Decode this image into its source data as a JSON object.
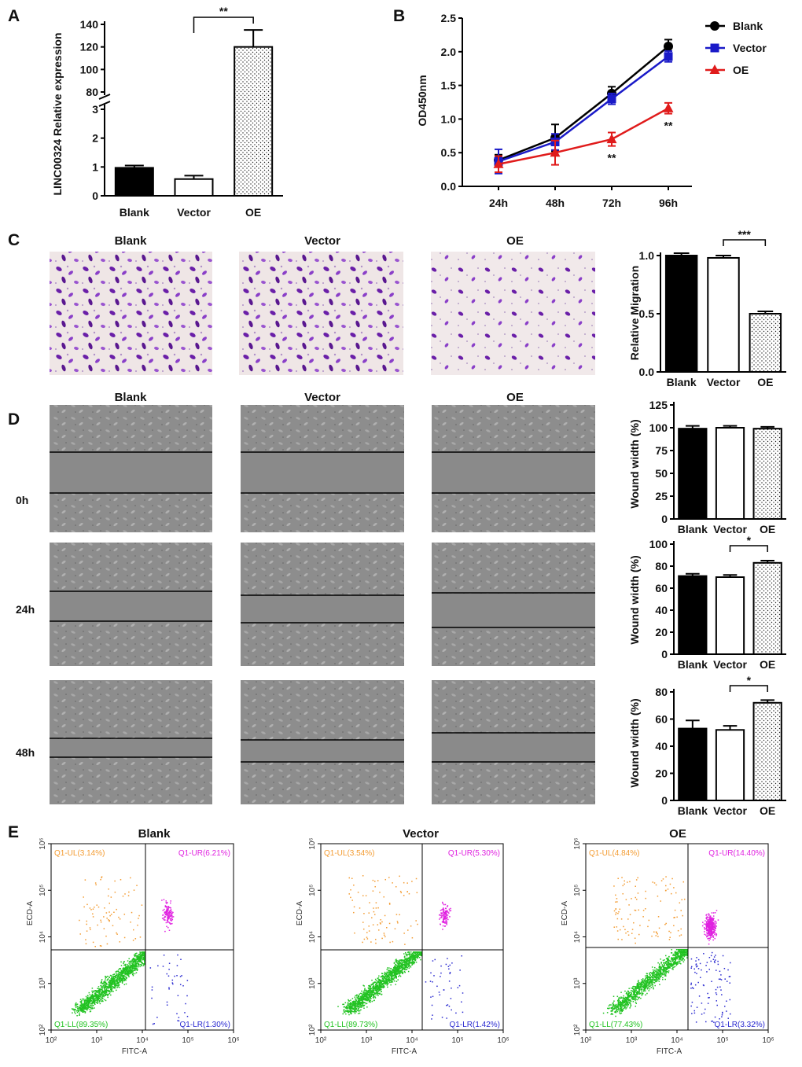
{
  "panels": {
    "A": "A",
    "B": "B",
    "C": "C",
    "D": "D",
    "E": "E"
  },
  "groups": [
    "Blank",
    "Vector",
    "OE"
  ],
  "colors": {
    "blank": "#000000",
    "vector": "#1a1ac8",
    "oe": "#e01b1b",
    "ul": "#f39c33",
    "ur": "#e022e0",
    "ll": "#22c322",
    "lr": "#2a2ad0"
  },
  "chart_data": [
    {
      "id": "A",
      "type": "bar",
      "title": "",
      "ylabel": "LINC00324 Relative expression",
      "categories": [
        "Blank",
        "Vector",
        "OE"
      ],
      "values": [
        0.97,
        0.58,
        120
      ],
      "errors": [
        0.08,
        0.12,
        15
      ],
      "ylim_low": [
        0,
        3
      ],
      "ylim_high": [
        80,
        140
      ],
      "yticks_low": [
        "0",
        "1",
        "2",
        "3"
      ],
      "yticks_high": [
        "80",
        "100",
        "120",
        "140"
      ],
      "significance": [
        {
          "from": "Vector",
          "to": "OE",
          "label": "**"
        }
      ]
    },
    {
      "id": "B",
      "type": "line",
      "ylabel": "OD450nm",
      "x": [
        "24h",
        "48h",
        "72h",
        "96h"
      ],
      "ylim": [
        0,
        2.5
      ],
      "yticks": [
        "0.0",
        "0.5",
        "1.0",
        "1.5",
        "2.0",
        "2.5"
      ],
      "series": [
        {
          "name": "Blank",
          "values": [
            0.39,
            0.72,
            1.38,
            2.08
          ],
          "errors": [
            0.08,
            0.2,
            0.1,
            0.1
          ]
        },
        {
          "name": "Vector",
          "values": [
            0.37,
            0.66,
            1.3,
            1.93
          ],
          "errors": [
            0.18,
            0.12,
            0.08,
            0.08
          ]
        },
        {
          "name": "OE",
          "values": [
            0.33,
            0.5,
            0.7,
            1.16
          ],
          "errors": [
            0.12,
            0.18,
            0.1,
            0.08
          ]
        }
      ],
      "annotations": [
        {
          "x": "72h",
          "label": "**"
        },
        {
          "x": "96h",
          "label": "**"
        }
      ]
    },
    {
      "id": "C",
      "type": "bar",
      "ylabel": "Relative Migration",
      "categories": [
        "Blank",
        "Vector",
        "OE"
      ],
      "values": [
        1.0,
        0.98,
        0.5
      ],
      "errors": [
        0.02,
        0.02,
        0.02
      ],
      "ylim": [
        0,
        1.0
      ],
      "yticks": [
        "0.0",
        "0.5",
        "1.0"
      ],
      "significance": [
        {
          "from": "Vector",
          "to": "OE",
          "label": "***"
        }
      ]
    },
    {
      "id": "D0",
      "type": "bar",
      "ylabel": "Wound width (%)",
      "categories": [
        "Blank",
        "Vector",
        "OE"
      ],
      "values": [
        99,
        100,
        99
      ],
      "errors": [
        3,
        2,
        2
      ],
      "ylim": [
        0,
        125
      ],
      "yticks": [
        "0",
        "25",
        "50",
        "75",
        "100",
        "125"
      ]
    },
    {
      "id": "D24",
      "type": "bar",
      "ylabel": "Wound width (%)",
      "categories": [
        "Blank",
        "Vector",
        "OE"
      ],
      "values": [
        71,
        70,
        83
      ],
      "errors": [
        2,
        2,
        2
      ],
      "ylim": [
        0,
        100
      ],
      "yticks": [
        "0",
        "20",
        "40",
        "60",
        "80",
        "100"
      ],
      "significance": [
        {
          "from": "Vector",
          "to": "OE",
          "label": "*"
        }
      ]
    },
    {
      "id": "D48",
      "type": "bar",
      "ylabel": "Wound width (%)",
      "categories": [
        "Blank",
        "Vector",
        "OE"
      ],
      "values": [
        53,
        52,
        72
      ],
      "errors": [
        6,
        3,
        2
      ],
      "ylim": [
        0,
        80
      ],
      "yticks": [
        "0",
        "20",
        "40",
        "60",
        "80"
      ],
      "significance": [
        {
          "from": "Vector",
          "to": "OE",
          "label": "*"
        }
      ]
    }
  ],
  "panelC": {
    "headers": [
      "Blank",
      "Vector",
      "OE"
    ]
  },
  "panelD": {
    "headers": [
      "Blank",
      "Vector",
      "OE"
    ],
    "timepoints": [
      "0h",
      "24h",
      "48h"
    ]
  },
  "panelE": {
    "headers": [
      "Blank",
      "Vector",
      "OE"
    ],
    "xlabel": "FITC-A",
    "ylabel": "ECD-A",
    "tick_labels": [
      "10²",
      "10³",
      "10⁴",
      "10⁵",
      "10⁶"
    ],
    "plots": [
      {
        "ul": "Q1-UL(3.14%)",
        "ur": "Q1-UR(6.21%)",
        "ll": "Q1-LL(89.35%)",
        "lr": "Q1-LR(1.30%)"
      },
      {
        "ul": "Q1-UL(3.54%)",
        "ur": "Q1-UR(5.30%)",
        "ll": "Q1-LL(89.73%)",
        "lr": "Q1-LR(1.42%)"
      },
      {
        "ul": "Q1-UL(4.84%)",
        "ur": "Q1-UR(14.40%)",
        "ll": "Q1-LL(77.43%)",
        "lr": "Q1-LR(3.32%)"
      }
    ]
  }
}
